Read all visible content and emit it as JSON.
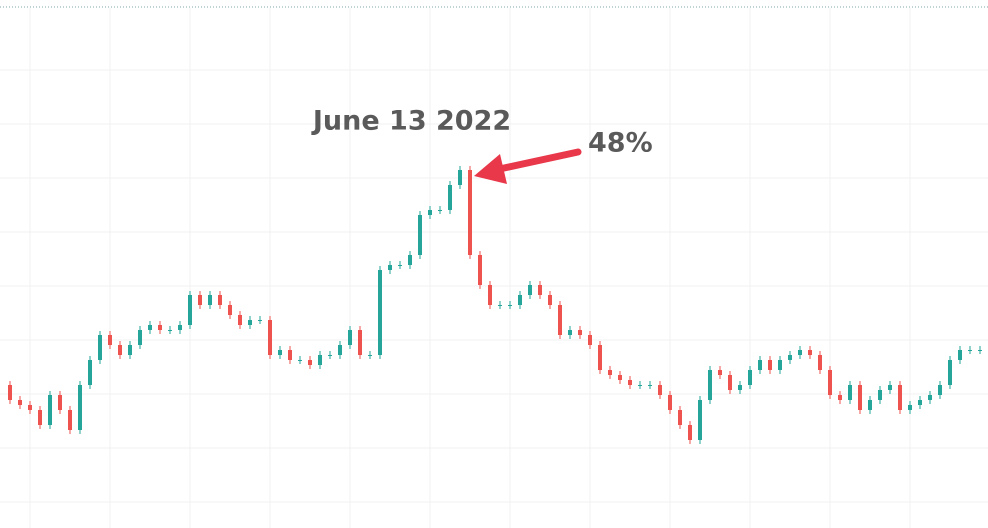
{
  "chart_data": {
    "type": "candlestick",
    "values": [
      143,
      128,
      123,
      118,
      103,
      133,
      118,
      98,
      143,
      168,
      193,
      183,
      173,
      183,
      198,
      203,
      198,
      198,
      203,
      233,
      223,
      233,
      223,
      213,
      203,
      208,
      208,
      173,
      178,
      168,
      168,
      163,
      173,
      173,
      183,
      198,
      173,
      173,
      258,
      263,
      263,
      273,
      313,
      318,
      318,
      343,
      358,
      273,
      243,
      223,
      223,
      223,
      233,
      243,
      233,
      223,
      193,
      198,
      193,
      183,
      158,
      153,
      148,
      143,
      143,
      143,
      133,
      118,
      103,
      88,
      128,
      158,
      153,
      138,
      143,
      158,
      168,
      158,
      168,
      173,
      178,
      173,
      158,
      133,
      128,
      143,
      118,
      128,
      138,
      143,
      118,
      123,
      128,
      133,
      143,
      168,
      178,
      178,
      178
    ],
    "ylim": [
      0,
      528
    ],
    "up_color": "#26a69a",
    "down_color": "#ef5350",
    "grid": true,
    "annotations": [
      "June 13 2022",
      "48%"
    ]
  }
}
